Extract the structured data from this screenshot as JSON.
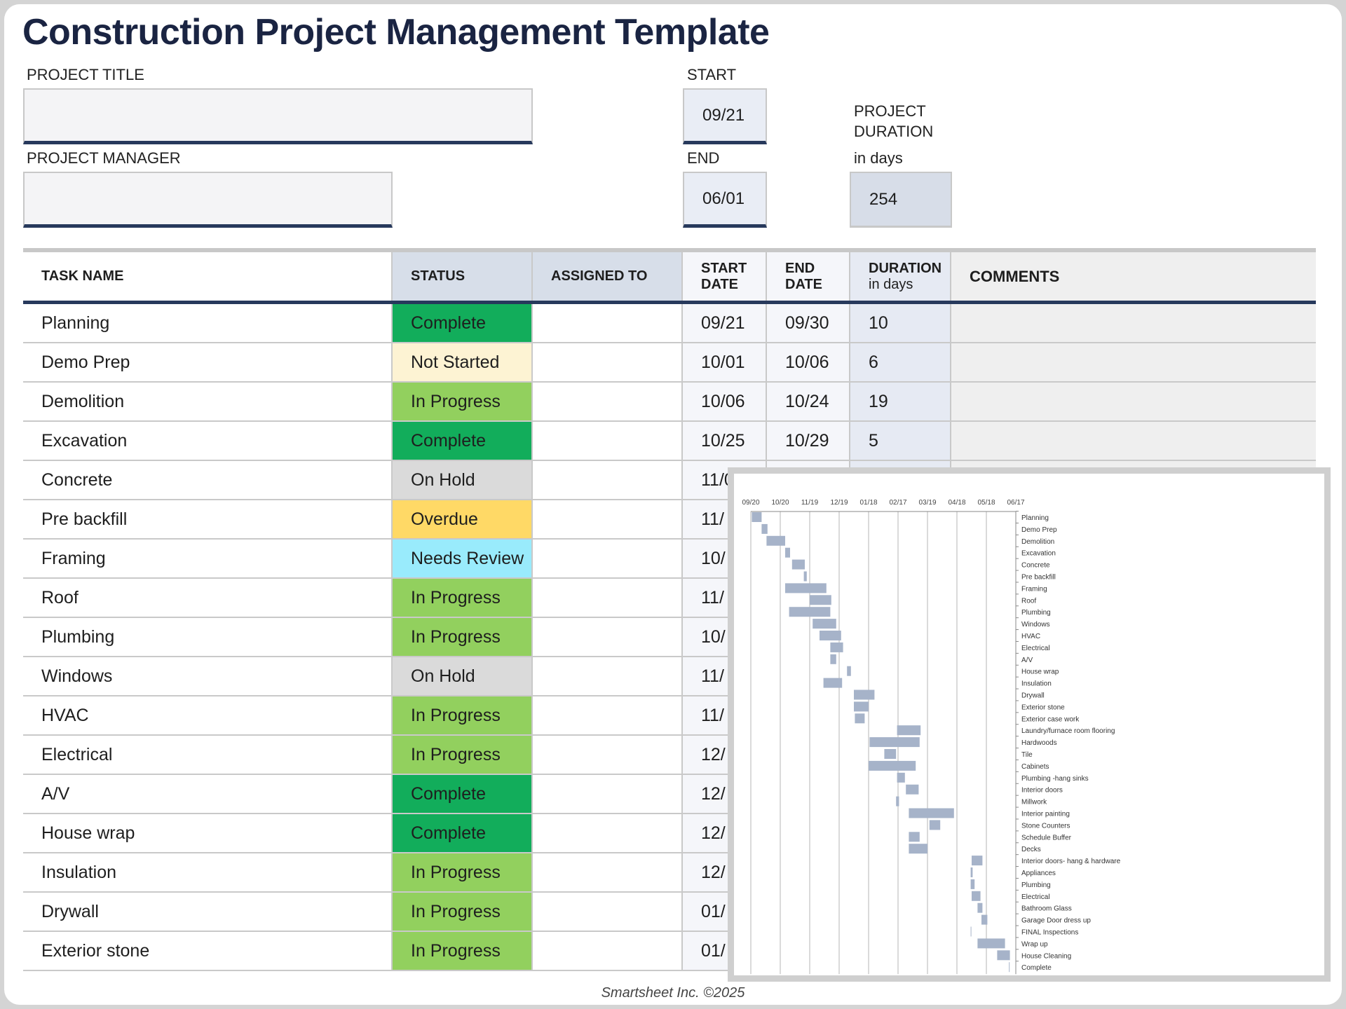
{
  "title": "Construction Project Management Template",
  "project": {
    "title_label": "PROJECT TITLE",
    "title_value": "",
    "manager_label": "PROJECT MANAGER",
    "manager_value": "",
    "start_label": "START",
    "start_value": "09/21",
    "end_label": "END",
    "end_value": "06/01",
    "duration_label_1": "PROJECT",
    "duration_label_2": "DURATION",
    "duration_label_3": "in days",
    "duration_value": "254"
  },
  "table": {
    "headers": {
      "task": "TASK NAME",
      "status": "STATUS",
      "assigned": "ASSIGNED TO",
      "start_1": "START",
      "start_2": "DATE",
      "end_1": "END",
      "end_2": "DATE",
      "duration_1": "DURATION",
      "duration_2": "in days",
      "comments": "COMMENTS"
    },
    "rows": [
      {
        "task": "Planning",
        "status": "Complete",
        "start": "09/21",
        "end": "09/30",
        "duration": "10"
      },
      {
        "task": "Demo Prep",
        "status": "Not Started",
        "start": "10/01",
        "end": "10/06",
        "duration": "6"
      },
      {
        "task": "Demolition",
        "status": "In Progress",
        "start": "10/06",
        "end": "10/24",
        "duration": "19"
      },
      {
        "task": "Excavation",
        "status": "Complete",
        "start": "10/25",
        "end": "10/29",
        "duration": "5"
      },
      {
        "task": "Concrete",
        "status": "On Hold",
        "start": "11/0",
        "end": "",
        "duration": ""
      },
      {
        "task": "Pre backfill",
        "status": "Overdue",
        "start": "11/",
        "end": "",
        "duration": ""
      },
      {
        "task": "Framing",
        "status": "Needs Review",
        "start": "10/",
        "end": "",
        "duration": ""
      },
      {
        "task": "Roof",
        "status": "In Progress",
        "start": "11/",
        "end": "",
        "duration": ""
      },
      {
        "task": "Plumbing",
        "status": "In Progress",
        "start": "10/",
        "end": "",
        "duration": ""
      },
      {
        "task": "Windows",
        "status": "On Hold",
        "start": "11/",
        "end": "",
        "duration": ""
      },
      {
        "task": "HVAC",
        "status": "In Progress",
        "start": "11/",
        "end": "",
        "duration": ""
      },
      {
        "task": "Electrical",
        "status": "In Progress",
        "start": "12/",
        "end": "",
        "duration": ""
      },
      {
        "task": "A/V",
        "status": "Complete",
        "start": "12/",
        "end": "",
        "duration": ""
      },
      {
        "task": "House wrap",
        "status": "Complete",
        "start": "12/",
        "end": "",
        "duration": ""
      },
      {
        "task": "Insulation",
        "status": "In Progress",
        "start": "12/",
        "end": "",
        "duration": ""
      },
      {
        "task": "Drywall",
        "status": "In Progress",
        "start": "01/",
        "end": "",
        "duration": ""
      },
      {
        "task": "Exterior stone",
        "status": "In Progress",
        "start": "01/",
        "end": "",
        "duration": ""
      }
    ]
  },
  "status_colors": {
    "Complete": "#12ad5b",
    "Not Started": "#fdf3d3",
    "In Progress": "#92d05e",
    "On Hold": "#dadada",
    "Overdue": "#ffd966",
    "Needs Review": "#99ebfc"
  },
  "footer": "Smartsheet Inc. ©2025",
  "chart_data": {
    "type": "gantt",
    "x_unit": "days from 09/20",
    "xlim": [
      0,
      270
    ],
    "x_ticks": [
      "09/20",
      "10/20",
      "11/19",
      "12/19",
      "01/18",
      "02/17",
      "03/19",
      "04/18",
      "05/18",
      "06/17"
    ],
    "bar_color": "#a6b3c9",
    "tasks": [
      {
        "name": "Planning",
        "start": 1,
        "duration": 10
      },
      {
        "name": "Demo Prep",
        "start": 11,
        "duration": 6
      },
      {
        "name": "Demolition",
        "start": 16,
        "duration": 19
      },
      {
        "name": "Excavation",
        "start": 35,
        "duration": 5
      },
      {
        "name": "Concrete",
        "start": 42,
        "duration": 13
      },
      {
        "name": "Pre backfill",
        "start": 54,
        "duration": 3
      },
      {
        "name": "Framing",
        "start": 35,
        "duration": 42
      },
      {
        "name": "Roof",
        "start": 60,
        "duration": 22
      },
      {
        "name": "Plumbing",
        "start": 39,
        "duration": 42
      },
      {
        "name": "Windows",
        "start": 63,
        "duration": 24
      },
      {
        "name": "HVAC",
        "start": 70,
        "duration": 22
      },
      {
        "name": "Electrical",
        "start": 81,
        "duration": 13
      },
      {
        "name": "A/V",
        "start": 81,
        "duration": 6
      },
      {
        "name": "House wrap",
        "start": 98,
        "duration": 4
      },
      {
        "name": "Insulation",
        "start": 74,
        "duration": 19
      },
      {
        "name": "Drywall",
        "start": 105,
        "duration": 21
      },
      {
        "name": "Exterior stone",
        "start": 105,
        "duration": 15
      },
      {
        "name": "Exterior case work",
        "start": 106,
        "duration": 10
      },
      {
        "name": "Laundry/furnace room flooring",
        "start": 149,
        "duration": 24
      },
      {
        "name": "Hardwoods",
        "start": 121,
        "duration": 51
      },
      {
        "name": "Tile",
        "start": 136,
        "duration": 12
      },
      {
        "name": "Cabinets",
        "start": 120,
        "duration": 48
      },
      {
        "name": "Plumbing -hang sinks",
        "start": 149,
        "duration": 8
      },
      {
        "name": "Interior doors",
        "start": 158,
        "duration": 13
      },
      {
        "name": "Millwork",
        "start": 148,
        "duration": 3
      },
      {
        "name": "Interior painting",
        "start": 161,
        "duration": 46
      },
      {
        "name": "Stone Counters",
        "start": 182,
        "duration": 11
      },
      {
        "name": "Schedule Buffer",
        "start": 161,
        "duration": 11
      },
      {
        "name": "Decks",
        "start": 161,
        "duration": 19
      },
      {
        "name": "Interior doors- hang & hardware",
        "start": 225,
        "duration": 11
      },
      {
        "name": "Appliances",
        "start": 224,
        "duration": 2
      },
      {
        "name": "Plumbing",
        "start": 224,
        "duration": 4
      },
      {
        "name": "Electrical",
        "start": 225,
        "duration": 9
      },
      {
        "name": "Bathroom Glass",
        "start": 231,
        "duration": 5
      },
      {
        "name": "Garage Door dress up",
        "start": 235,
        "duration": 6
      },
      {
        "name": "FINAL Inspections",
        "start": 224,
        "duration": 0.5
      },
      {
        "name": "Wrap up",
        "start": 231,
        "duration": 28
      },
      {
        "name": "House Cleaning",
        "start": 251,
        "duration": 13
      },
      {
        "name": "Complete",
        "start": 263,
        "duration": 0.5
      }
    ]
  }
}
